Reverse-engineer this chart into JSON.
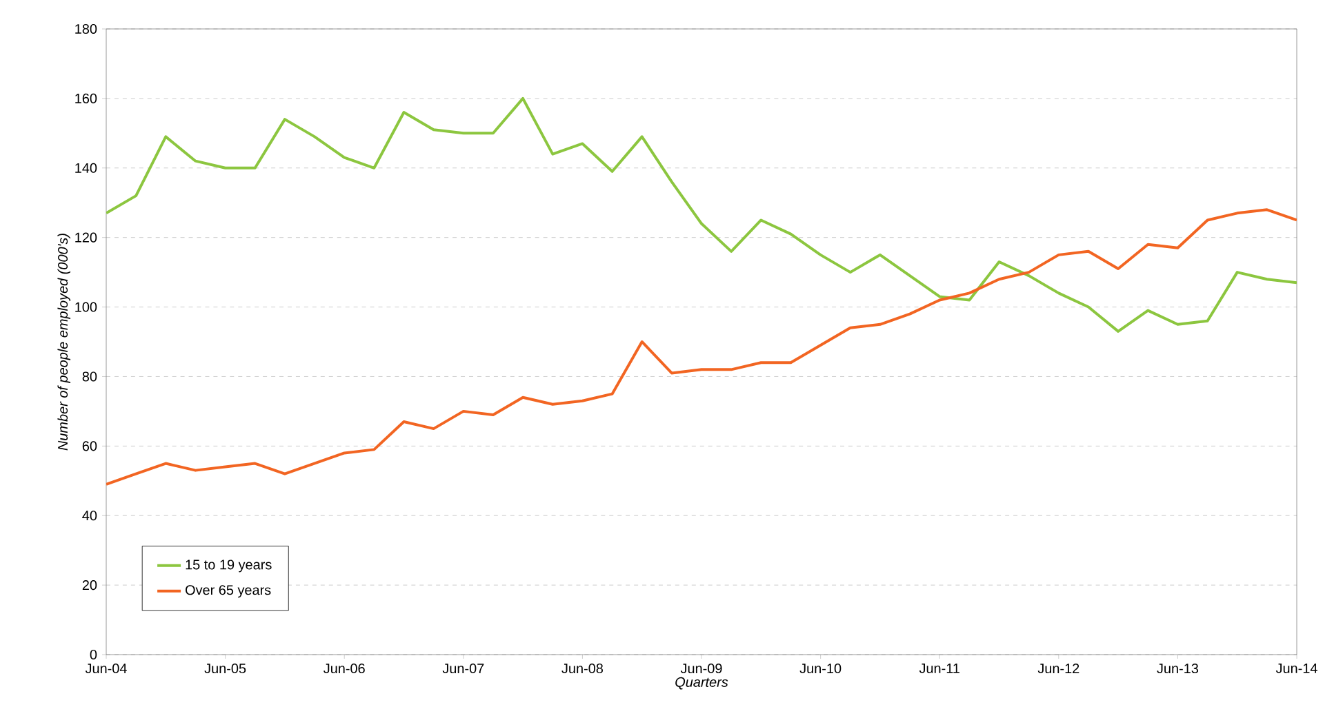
{
  "chart_data": {
    "type": "line",
    "xlabel": "Quarters",
    "ylabel": "Number of people employed (000's)",
    "categories": [
      "Jun-04",
      null,
      null,
      null,
      "Jun-05",
      null,
      null,
      null,
      "Jun-06",
      null,
      null,
      null,
      "Jun-07",
      null,
      null,
      null,
      "Jun-08",
      null,
      null,
      null,
      "Jun-09",
      null,
      null,
      null,
      "Jun-10",
      null,
      null,
      null,
      "Jun-11",
      null,
      null,
      null,
      "Jun-12",
      null,
      null,
      null,
      "Jun-13",
      null,
      null,
      null,
      "Jun-14"
    ],
    "series": [
      {
        "name": "15 to 19 years",
        "color": "#8cc63f",
        "values": [
          127,
          132,
          149,
          142,
          140,
          140,
          154,
          149,
          143,
          140,
          156,
          151,
          150,
          150,
          160,
          144,
          147,
          139,
          149,
          136,
          124,
          116,
          125,
          121,
          115,
          110,
          115,
          109,
          103,
          102,
          113,
          109,
          104,
          100,
          93,
          99,
          95,
          96,
          110,
          108,
          107
        ]
      },
      {
        "name": "Over 65 years",
        "color": "#f26522",
        "values": [
          49,
          52,
          55,
          53,
          54,
          55,
          52,
          55,
          58,
          59,
          67,
          65,
          70,
          69,
          74,
          72,
          73,
          75,
          90,
          81,
          82,
          82,
          84,
          84,
          89,
          94,
          95,
          98,
          102,
          104,
          108,
          110,
          115,
          116,
          111,
          118,
          117,
          125,
          127,
          128,
          125
        ]
      }
    ],
    "ylim": [
      0,
      180
    ],
    "yticks": [
      0,
      20,
      40,
      60,
      80,
      100,
      120,
      140,
      160,
      180
    ],
    "grid": "y",
    "legend": "bottom left",
    "marker": "none",
    "line_style": "solid"
  }
}
